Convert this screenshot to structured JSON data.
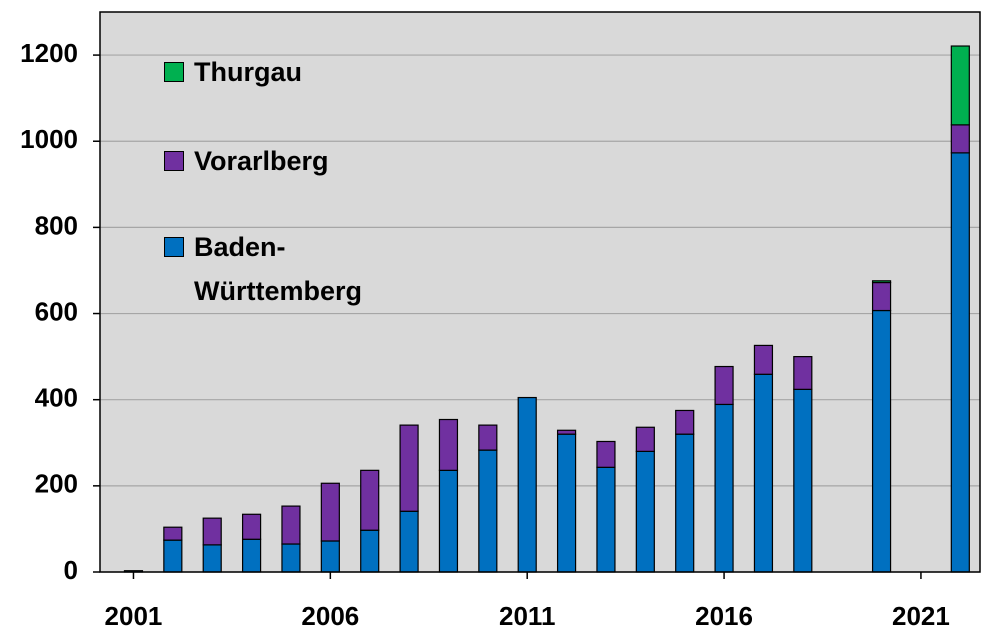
{
  "chart_data": {
    "type": "bar",
    "stacked": true,
    "x": [
      2001,
      2002,
      2003,
      2004,
      2005,
      2006,
      2007,
      2008,
      2009,
      2010,
      2011,
      2012,
      2013,
      2014,
      2015,
      2016,
      2017,
      2018,
      2020,
      2022
    ],
    "series": [
      {
        "name": "Baden-\nWürttemberg",
        "color": "#0070c0",
        "values": [
          3,
          74,
          63,
          76,
          65,
          72,
          97,
          141,
          236,
          283,
          405,
          320,
          243,
          280,
          320,
          389,
          459,
          424,
          607,
          973
        ]
      },
      {
        "name": "Vorarlberg",
        "color": "#7030a0",
        "values": [
          0,
          30,
          62,
          58,
          88,
          134,
          139,
          200,
          118,
          58,
          0,
          9,
          60,
          56,
          55,
          88,
          67,
          76,
          65,
          65
        ]
      },
      {
        "name": "Thurgau",
        "color": "#00b050",
        "values": [
          0,
          0,
          0,
          0,
          0,
          0,
          0,
          0,
          0,
          0,
          0,
          0,
          0,
          0,
          0,
          0,
          0,
          0,
          4,
          183
        ]
      }
    ],
    "xlim": [
      2000.15,
      2022.5
    ],
    "xticks": [
      2001,
      2006,
      2011,
      2016,
      2021
    ],
    "ylim": [
      0,
      1300
    ],
    "yticks": [
      0,
      200,
      400,
      600,
      800,
      1000,
      1200
    ],
    "grid": true,
    "legend": "upper left"
  }
}
